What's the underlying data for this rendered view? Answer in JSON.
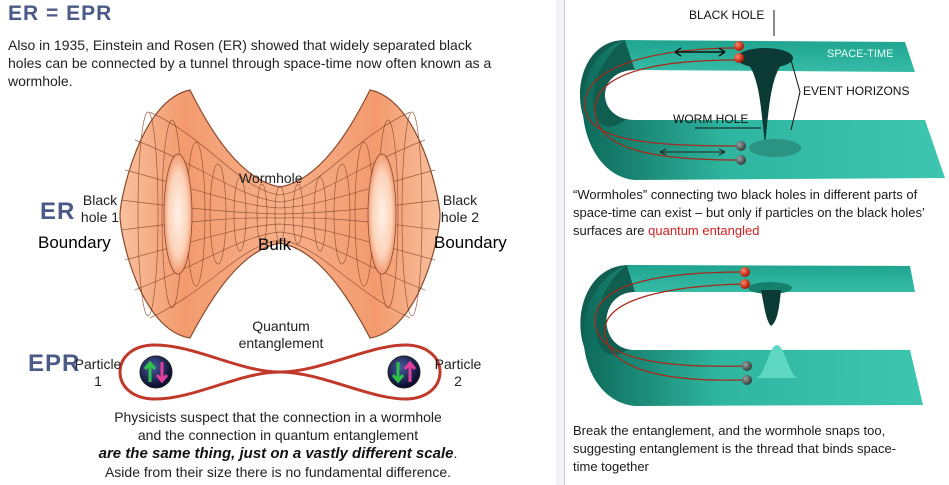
{
  "left": {
    "title": "ER = EPR",
    "intro": "Also in 1935, Einstein and Rosen (ER) showed that widely separated black holes can be connected by a tunnel through space-time now often known as a wormhole.",
    "er_tag": "ER",
    "epr_tag": "EPR",
    "wormhole_label": "Wormhole",
    "black_hole_1": [
      "Black",
      "hole 1"
    ],
    "black_hole_2": [
      "Black",
      "hole 2"
    ],
    "boundary_left": "Boundary",
    "bulk": "Bulk",
    "boundary_right": "Boundary",
    "entanglement_label": [
      "Quantum",
      "entanglement"
    ],
    "particle_1": [
      "Particle",
      "1"
    ],
    "particle_2": [
      "Particle",
      "2"
    ],
    "caption_line1": "Physicists suspect that the connection in a wormhole",
    "caption_line2": "and the connection in quantum entanglement",
    "caption_emph": "are the same thing, just on a vastly different scale",
    "caption_period": ".",
    "caption_line4": "Aside from their size there is no fundamental difference."
  },
  "right": {
    "black_hole_label": "BLACK HOLE",
    "spacetime_label": "SPACE-TIME",
    "event_horizons_label": "EVENT HORIZONS",
    "worm_hole_label": "WORM HOLE",
    "caption1_part1": "“Wormholes” connecting two black holes in different parts of space-time can exist – but only if particles on the black holes’ surfaces are ",
    "caption1_red": "quantum entangled",
    "caption2": "Break the entanglement, and the wormhole snaps too, suggesting entanglement is the thread that binds space-time together"
  },
  "colors": {
    "title_blue": "#4b5a86",
    "wormhole_fill": "#f4a37a",
    "wormhole_grid": "#8a4a2c",
    "loop_red": "#c0392b",
    "spacetime_teal": "#2fb6a0",
    "red_text": "#d42020"
  }
}
